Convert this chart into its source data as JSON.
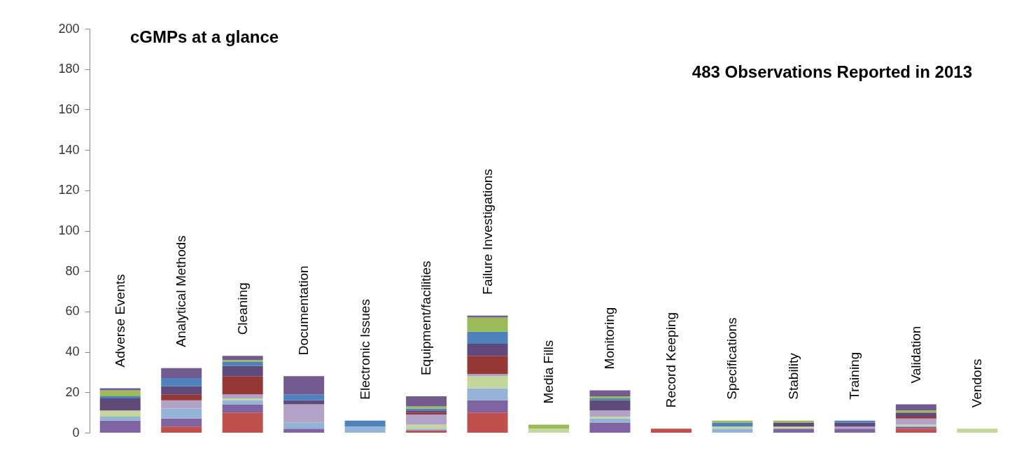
{
  "chart_data": {
    "type": "bar",
    "stacked": true,
    "title": "cGMPs  at a glance",
    "annotations": [
      "483 Observations Reported in 2013"
    ],
    "categories": [
      "Adverse Events",
      "Analytical Methods",
      "Cleaning",
      "Documentation",
      "Electronic Issues",
      "Equipment/facilities",
      "Failure Investigations",
      "Media Fills",
      "Monitoring",
      "Record Keeping",
      "Specifications",
      "Stability",
      "Training",
      "Validation",
      "Vendors"
    ],
    "series": [
      {
        "color": "#c0504d",
        "values": [
          0,
          3,
          10,
          0,
          0,
          1,
          10,
          0,
          0,
          2,
          0,
          0,
          0,
          2,
          0
        ]
      },
      {
        "color": "#8064a2",
        "values": [
          6,
          4,
          4,
          2,
          0,
          0,
          6,
          0,
          5,
          0,
          0,
          2,
          2,
          1,
          0
        ]
      },
      {
        "color": "#95b3d7",
        "values": [
          2,
          5,
          2,
          3,
          3,
          1,
          6,
          0,
          2,
          0,
          2,
          0,
          0,
          0,
          0
        ]
      },
      {
        "color": "#c3d69b",
        "values": [
          3,
          0,
          1,
          0,
          0,
          2,
          6,
          2,
          1,
          0,
          1,
          1,
          0,
          1,
          2
        ]
      },
      {
        "color": "#b3a2c7",
        "values": [
          0,
          4,
          2,
          9,
          0,
          5,
          1,
          0,
          3,
          0,
          0,
          0,
          1,
          3,
          0
        ]
      },
      {
        "color": "#953735",
        "values": [
          0,
          3,
          9,
          0,
          0,
          1,
          9,
          0,
          0,
          0,
          0,
          0,
          0,
          1,
          0
        ]
      },
      {
        "color": "#604a7b",
        "values": [
          6,
          4,
          5,
          2,
          0,
          1,
          6,
          0,
          5,
          0,
          0,
          2,
          2,
          2,
          0
        ]
      },
      {
        "color": "#4f81bd",
        "values": [
          1,
          4,
          2,
          3,
          3,
          1,
          6,
          0,
          1,
          0,
          2,
          0,
          1,
          0,
          0
        ]
      },
      {
        "color": "#9bbb59",
        "values": [
          3,
          0,
          1,
          0,
          0,
          1,
          7,
          2,
          1,
          0,
          1,
          1,
          0,
          1,
          0
        ]
      },
      {
        "color": "#735a8f",
        "values": [
          1,
          5,
          2,
          9,
          0,
          5,
          1,
          0,
          3,
          0,
          0,
          0,
          0,
          3,
          0
        ]
      }
    ],
    "ylim": [
      0,
      200
    ],
    "yticks": [
      0,
      20,
      40,
      60,
      80,
      100,
      120,
      140,
      160,
      180,
      200
    ],
    "grid": false,
    "legend": false,
    "tick_labels": "y"
  }
}
